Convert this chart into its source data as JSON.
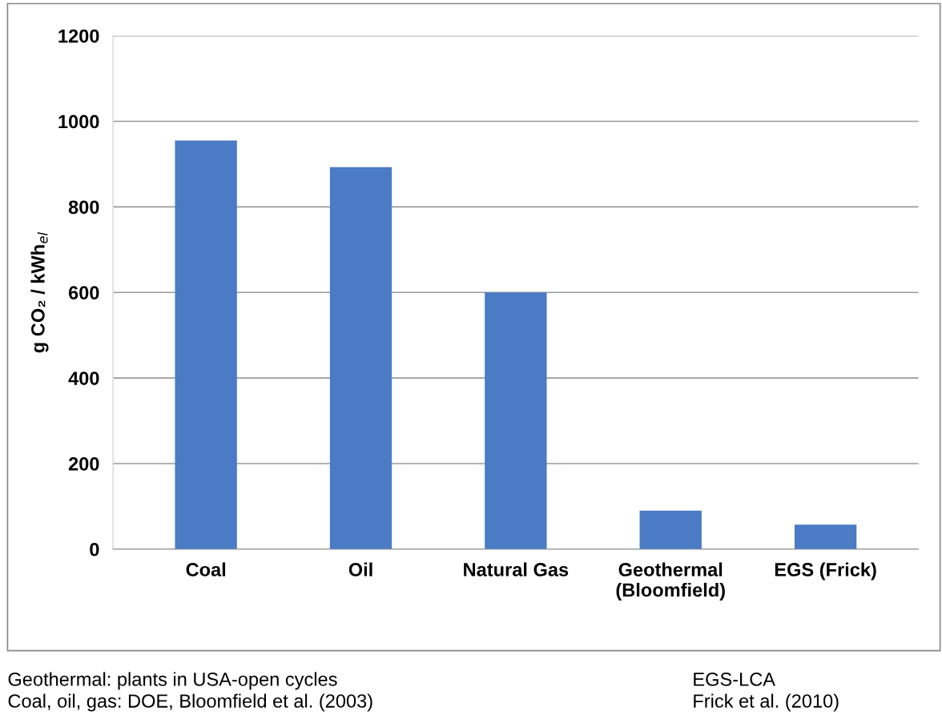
{
  "chart_data": {
    "type": "bar",
    "ylabel": "g CO₂ / kWh$_{el}$",
    "categories": [
      "Coal",
      "Oil",
      "Natural Gas",
      "Geothermal\n(Bloomfield)",
      "EGS (Frick)"
    ],
    "values": [
      955,
      893,
      600,
      90,
      57
    ],
    "color": "#4a7bc4",
    "ylim": [
      0,
      1200
    ],
    "yticks": [
      0,
      200,
      400,
      600,
      800,
      1000,
      1200
    ],
    "grid": "y",
    "annotations": [
      "Geothermal: plants in USA-open cycles\nCoal, oil, gas: DOE, Bloomfield et al. (2003)",
      "EGS-LCA\nFrick et al. (2010)"
    ]
  }
}
